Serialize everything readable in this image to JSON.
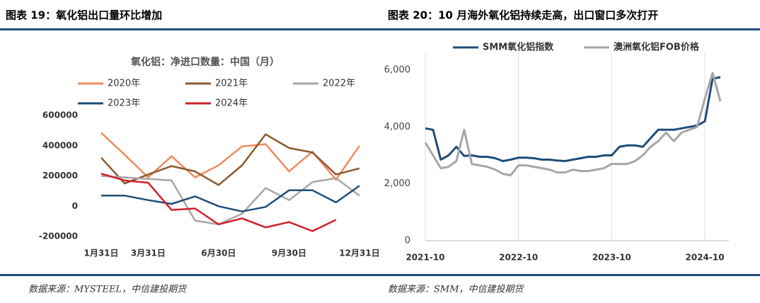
{
  "chart_data": [
    {
      "type": "line",
      "caption": "图表 19：氧化铝出口量环比增加",
      "title": "氧化铝：净进口数量：中国（月）",
      "source": "数据来源：MYSTEEL，中信建投期货",
      "categories": [
        "1月31日",
        null,
        "3月31日",
        null,
        null,
        "6月30日",
        null,
        null,
        "9月30日",
        null,
        null,
        "12月31日"
      ],
      "series": [
        {
          "name": "2020年",
          "color": "#f08a5d",
          "values": [
            485000,
            340000,
            190000,
            330000,
            190000,
            270000,
            395000,
            410000,
            230000,
            360000,
            175000,
            400000
          ]
        },
        {
          "name": "2021年",
          "color": "#8c5a2e",
          "values": [
            320000,
            150000,
            210000,
            265000,
            230000,
            140000,
            270000,
            475000,
            385000,
            355000,
            210000,
            250000
          ]
        },
        {
          "name": "2022年",
          "color": "#a6a6a6",
          "values": [
            200000,
            190000,
            180000,
            170000,
            -95000,
            -120000,
            -50000,
            120000,
            40000,
            160000,
            185000,
            70000
          ]
        },
        {
          "name": "2023年",
          "color": "#1f4e79",
          "values": [
            70000,
            70000,
            40000,
            15000,
            65000,
            0,
            -35000,
            -5000,
            105000,
            105000,
            25000,
            135000
          ]
        },
        {
          "name": "2024年",
          "color": "#d0202a",
          "values": [
            215000,
            170000,
            155000,
            -25000,
            -15000,
            -120000,
            -80000,
            -140000,
            -105000,
            -165000,
            -90000,
            null
          ]
        }
      ],
      "ylim": [
        -200000,
        600000
      ],
      "yticks": [
        -200000,
        0,
        200000,
        400000,
        600000
      ],
      "legend": "top",
      "grid": false
    },
    {
      "type": "line",
      "caption": "图表 20：10 月海外氧化铝持续走高，出口窗口多次打开",
      "source": "数据来源：SMM，中信建投期货",
      "x": [
        "2021-10",
        "2021-11",
        "2021-12",
        "2022-01",
        "2022-02",
        "2022-03",
        "2022-04",
        "2022-05",
        "2022-06",
        "2022-07",
        "2022-08",
        "2022-09",
        "2022-10",
        "2022-11",
        "2022-12",
        "2023-01",
        "2023-02",
        "2023-03",
        "2023-04",
        "2023-05",
        "2023-06",
        "2023-07",
        "2023-08",
        "2023-09",
        "2023-10",
        "2023-11",
        "2023-12",
        "2024-01",
        "2024-02",
        "2024-03",
        "2024-04",
        "2024-05",
        "2024-06",
        "2024-07",
        "2024-08",
        "2024-09",
        "2024-10",
        "2024-11",
        "2024-12"
      ],
      "series": [
        {
          "name": "SMM氧化铝指数",
          "color": "#1f4e79",
          "values": [
            3950,
            3900,
            2850,
            3000,
            3300,
            2980,
            3000,
            2950,
            2950,
            2900,
            2800,
            2850,
            2920,
            2920,
            2900,
            2850,
            2850,
            2820,
            2800,
            2850,
            2900,
            2950,
            2950,
            3000,
            3000,
            3300,
            3350,
            3350,
            3300,
            3600,
            3900,
            3900,
            3900,
            3950,
            4000,
            4050,
            4200,
            5700,
            5750
          ]
        },
        {
          "name": "澳洲氧化铝FOB价格",
          "color": "#a6a6a6",
          "values": [
            3450,
            3000,
            2550,
            2600,
            2800,
            3900,
            2700,
            2650,
            2600,
            2500,
            2350,
            2300,
            2650,
            2650,
            2600,
            2550,
            2500,
            2400,
            2400,
            2500,
            2450,
            2450,
            2500,
            2550,
            2700,
            2700,
            2700,
            2800,
            3000,
            3300,
            3500,
            3800,
            3500,
            3800,
            3900,
            4000,
            5000,
            5900,
            4900
          ]
        }
      ],
      "xticks": [
        "2021-10",
        "2022-10",
        "2023-10",
        "2024-10"
      ],
      "ylim": [
        0,
        6000
      ],
      "yticks": [
        0,
        {
          "value": 2000,
          "label": "2,000"
        },
        {
          "value": 4000,
          "label": "4,000"
        },
        {
          "value": 6000,
          "label": "6,000"
        }
      ],
      "legend": "top",
      "grid": true
    }
  ]
}
